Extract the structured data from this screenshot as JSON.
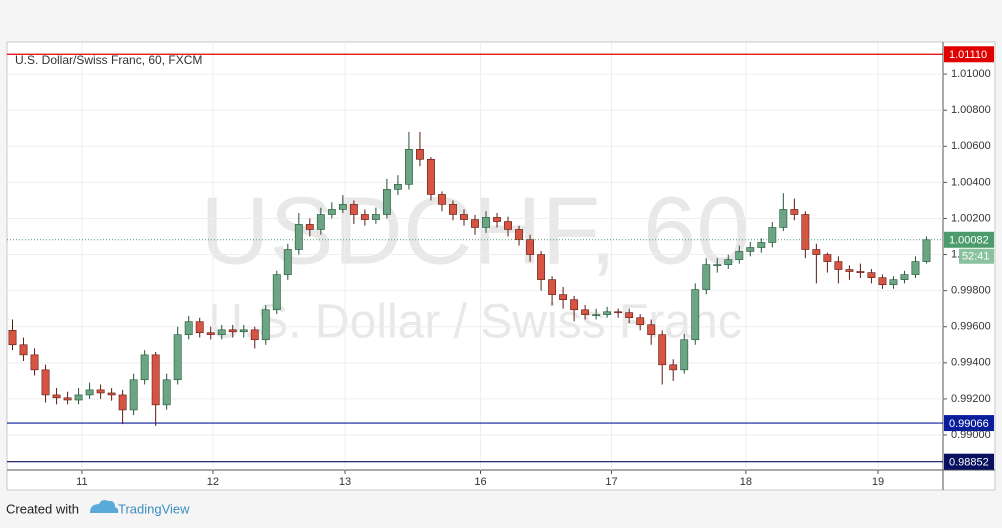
{
  "chart_data": {
    "type": "candlestick",
    "title": "U.S. Dollar/Swiss Franc, 60, FXCM",
    "watermark": {
      "symbol": "USDCHF, 60",
      "description": "U.S. Dollar / Swiss Franc"
    },
    "up_color": "#6ba583",
    "down_color": "#d75442",
    "xlim": [
      0,
      85
    ],
    "xticks": [
      {
        "value": 6.8,
        "label": "11"
      },
      {
        "value": 18.7,
        "label": "12"
      },
      {
        "value": 30.7,
        "label": "13"
      },
      {
        "value": 43.0,
        "label": "16"
      },
      {
        "value": 54.9,
        "label": "17"
      },
      {
        "value": 67.1,
        "label": "18"
      },
      {
        "value": 79.1,
        "label": "19"
      }
    ],
    "ylim": [
      0.98806,
      1.01178
    ],
    "yticks": [
      {
        "value": 0.99,
        "label": "0.99000"
      },
      {
        "value": 0.992,
        "label": "0.99200"
      },
      {
        "value": 0.994,
        "label": "0.99400"
      },
      {
        "value": 0.996,
        "label": "0.99600"
      },
      {
        "value": 0.998,
        "label": "0.99800"
      },
      {
        "value": 1.0,
        "label": "1.00000"
      },
      {
        "value": 1.002,
        "label": "1.00200"
      },
      {
        "value": 1.004,
        "label": "1.00400"
      },
      {
        "value": 1.006,
        "label": "1.00600"
      },
      {
        "value": 1.008,
        "label": "1.00800"
      },
      {
        "value": 1.01,
        "label": "1.01000"
      }
    ],
    "grid": true,
    "hlines": [
      {
        "value": 1.0111,
        "label": "1.01110",
        "color": "#e00000"
      },
      {
        "value": 0.99066,
        "label": "0.99066",
        "color": "#0a1e9c"
      },
      {
        "value": 0.98852,
        "label": "0.98852",
        "color": "#0a1060"
      }
    ],
    "last_price": {
      "value": 1.00082,
      "label": "1.00082",
      "color": "#4c9b6c"
    },
    "countdown": "52:41",
    "open": [
      0.9958,
      0.995,
      0.99444,
      0.99361,
      0.99222,
      0.99206,
      0.99194,
      0.99222,
      0.9925,
      0.99233,
      0.99222,
      0.99139,
      0.99306,
      0.99444,
      0.99167,
      0.99306,
      0.99556,
      0.99628,
      0.99567,
      0.99556,
      0.99583,
      0.99572,
      0.99583,
      0.99528,
      0.99694,
      0.99889,
      1.00028,
      1.00167,
      1.00139,
      1.00222,
      1.0025,
      1.00278,
      1.00222,
      1.00194,
      1.00222,
      1.00361,
      1.00389,
      1.00583,
      1.00528,
      1.00333,
      1.00278,
      1.00222,
      1.00194,
      1.0015,
      1.00206,
      1.00183,
      1.00139,
      1.00083,
      1.0,
      0.99861,
      0.99778,
      0.9975,
      0.99694,
      0.99667,
      0.99667,
      0.99683,
      0.99678,
      0.9965,
      0.99611,
      0.99556,
      0.99389,
      0.99361,
      0.99528,
      0.99806,
      0.99944,
      0.99944,
      0.99972,
      1.00017,
      1.00039,
      1.00067,
      1.0015,
      1.0025,
      1.00222,
      1.00028,
      1.0,
      0.99961,
      0.99917,
      0.99906,
      0.999,
      0.99872,
      0.99833,
      0.99861,
      0.99889,
      0.99961
    ],
    "high": [
      0.9964,
      0.9954,
      0.9948,
      0.9939,
      0.9926,
      0.9924,
      0.9926,
      0.9929,
      0.9928,
      0.9926,
      0.9925,
      0.9934,
      0.9947,
      0.9946,
      0.9934,
      0.996,
      0.9966,
      0.9965,
      0.996,
      0.9961,
      0.9961,
      0.9961,
      0.996,
      0.9972,
      0.9991,
      1.0006,
      1.0023,
      1.002,
      1.0026,
      1.0029,
      1.0033,
      1.003,
      1.0025,
      1.0026,
      1.0042,
      1.0044,
      1.0068,
      1.0068,
      1.0054,
      1.0035,
      1.003,
      1.0025,
      1.0022,
      1.0024,
      1.0023,
      1.0021,
      1.0016,
      1.0011,
      1.0002,
      0.9988,
      0.9982,
      0.9977,
      0.9972,
      0.997,
      0.9971,
      0.997,
      0.997,
      0.9967,
      0.9964,
      0.9958,
      0.9942,
      0.9956,
      0.9984,
      0.9998,
      0.9998,
      1.0,
      1.0005,
      1.0007,
      1.0009,
      1.0018,
      1.0034,
      1.0031,
      1.0024,
      1.0006,
      1.0001,
      0.9999,
      0.9994,
      0.9995,
      0.9992,
      0.9989,
      0.9988,
      0.9991,
      0.9999,
      1.001
    ],
    "low": [
      0.9947,
      0.9941,
      0.9933,
      0.9918,
      0.9917,
      0.9917,
      0.9917,
      0.992,
      0.992,
      0.9919,
      0.9906,
      0.9911,
      0.9928,
      0.9905,
      0.9914,
      0.9928,
      0.9953,
      0.9954,
      0.9953,
      0.9953,
      0.9954,
      0.9954,
      0.9948,
      0.995,
      0.9967,
      0.9986,
      1.0,
      1.001,
      1.0011,
      1.002,
      1.0023,
      1.0017,
      1.0016,
      1.0017,
      1.002,
      1.0033,
      1.0036,
      1.0049,
      1.003,
      1.0024,
      1.0019,
      1.0016,
      1.0011,
      1.0012,
      1.0015,
      1.001,
      1.0005,
      0.9996,
      0.998,
      0.9972,
      0.997,
      0.9963,
      0.9964,
      0.9964,
      0.9965,
      0.9965,
      0.9962,
      0.9958,
      0.995,
      0.9928,
      0.993,
      0.9934,
      0.995,
      0.9978,
      0.999,
      0.9992,
      0.9995,
      0.9999,
      1.0001,
      1.0004,
      1.0013,
      1.0019,
      0.9998,
      0.9984,
      0.999,
      0.9984,
      0.9986,
      0.9987,
      0.9984,
      0.9981,
      0.9981,
      0.9984,
      0.9987,
      0.9995
    ],
    "close": [
      0.995,
      0.99444,
      0.99361,
      0.99222,
      0.99206,
      0.99194,
      0.99222,
      0.9925,
      0.99233,
      0.99222,
      0.99139,
      0.99306,
      0.99444,
      0.99167,
      0.99306,
      0.99556,
      0.99628,
      0.99567,
      0.99556,
      0.99583,
      0.99572,
      0.99583,
      0.99528,
      0.99694,
      0.99889,
      1.00028,
      1.00167,
      1.00139,
      1.00222,
      1.0025,
      1.00278,
      1.00222,
      1.00194,
      1.00222,
      1.00361,
      1.00389,
      1.00583,
      1.00528,
      1.00333,
      1.00278,
      1.00222,
      1.00194,
      1.0015,
      1.00206,
      1.00183,
      1.00139,
      1.00083,
      1.0,
      0.99861,
      0.99778,
      0.9975,
      0.99694,
      0.99667,
      0.99667,
      0.99683,
      0.99678,
      0.9965,
      0.99611,
      0.99556,
      0.99389,
      0.99361,
      0.99528,
      0.99806,
      0.99944,
      0.99944,
      0.99972,
      1.00017,
      1.00039,
      1.00067,
      1.0015,
      1.0025,
      1.00222,
      1.00028,
      1.0,
      0.99961,
      0.99917,
      0.99906,
      0.999,
      0.99872,
      0.99833,
      0.99861,
      0.99889,
      0.99961,
      1.00082
    ]
  },
  "footer": {
    "created": "Created with",
    "brand": "TradingView"
  }
}
